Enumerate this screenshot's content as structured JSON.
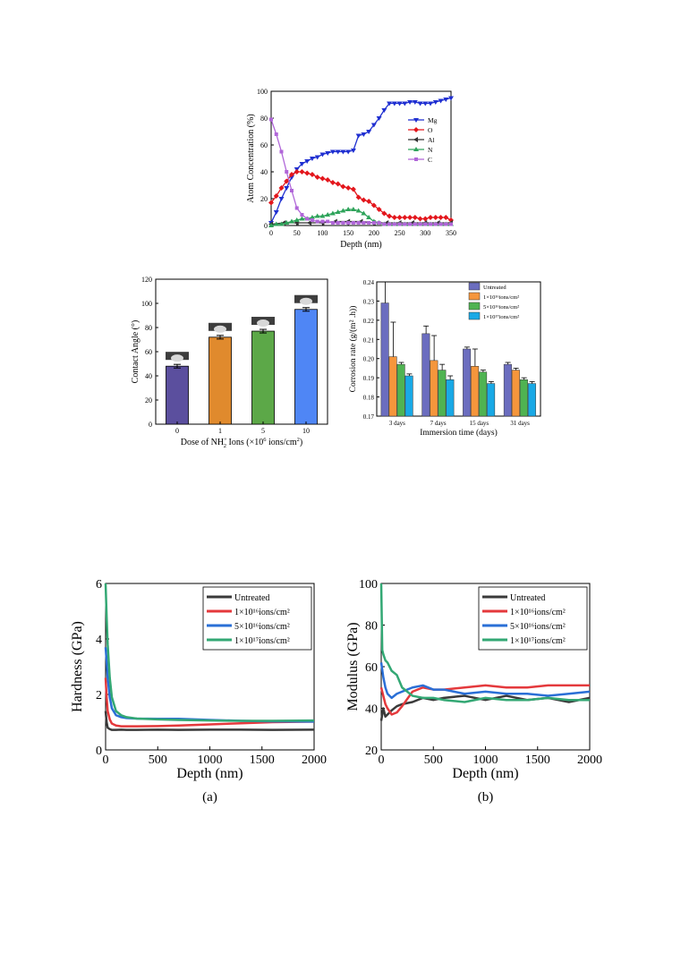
{
  "charts": {
    "atom": {
      "type": "line",
      "xlabel": "Depth (nm)",
      "ylabel": "Atom Concentration (%)",
      "xlim": [
        0,
        350
      ],
      "ylim": [
        0,
        100
      ],
      "xticks": [
        0,
        50,
        100,
        150,
        200,
        250,
        300,
        350
      ],
      "yticks": [
        0,
        20,
        40,
        60,
        80,
        100
      ],
      "legend_position": "right",
      "series": [
        {
          "name": "Mg",
          "color": "#1f2fd1",
          "marker": "tri-down",
          "x": [
            0,
            10,
            20,
            30,
            40,
            50,
            60,
            70,
            80,
            90,
            100,
            110,
            120,
            130,
            140,
            150,
            160,
            170,
            180,
            190,
            200,
            210,
            220,
            230,
            240,
            250,
            260,
            270,
            280,
            290,
            300,
            310,
            320,
            330,
            340,
            350
          ],
          "y": [
            2,
            10,
            20,
            28,
            36,
            42,
            46,
            48,
            50,
            51,
            53,
            54,
            55,
            55,
            55,
            55,
            56,
            67,
            68,
            70,
            75,
            80,
            86,
            91,
            91,
            91,
            91,
            92,
            92,
            91,
            91,
            91,
            92,
            93,
            94,
            95
          ]
        },
        {
          "name": "O",
          "color": "#e3161c",
          "marker": "diamond",
          "x": [
            0,
            10,
            20,
            30,
            40,
            50,
            60,
            70,
            80,
            90,
            100,
            110,
            120,
            130,
            140,
            150,
            160,
            170,
            180,
            190,
            200,
            210,
            220,
            230,
            240,
            250,
            260,
            270,
            280,
            290,
            300,
            310,
            320,
            330,
            340,
            350
          ],
          "y": [
            17,
            22,
            28,
            33,
            38,
            40,
            40,
            39,
            38,
            36,
            35,
            34,
            32,
            31,
            29,
            28,
            27,
            21,
            19,
            18,
            15,
            12,
            9,
            7,
            6,
            6,
            6,
            6,
            6,
            5,
            5,
            6,
            6,
            6,
            6,
            4
          ]
        },
        {
          "name": "Al",
          "color": "#333333",
          "marker": "tri-left",
          "x": [
            0,
            25,
            50,
            75,
            100,
            125,
            150,
            175,
            200,
            225,
            250,
            275,
            300,
            325,
            350
          ],
          "y": [
            1,
            2,
            2,
            2,
            2,
            3,
            3,
            3,
            2,
            2,
            2,
            2,
            2,
            2,
            2
          ]
        },
        {
          "name": "N",
          "color": "#2ea35a",
          "marker": "tri-up",
          "x": [
            0,
            10,
            20,
            30,
            40,
            50,
            60,
            70,
            80,
            90,
            100,
            110,
            120,
            130,
            140,
            150,
            160,
            170,
            180,
            190,
            200,
            210,
            220,
            230,
            240,
            250,
            260,
            270,
            280,
            290,
            300,
            310,
            320,
            330,
            340,
            350
          ],
          "y": [
            0,
            1,
            1,
            2,
            3,
            4,
            5,
            5,
            6,
            7,
            7,
            8,
            9,
            10,
            11,
            12,
            12,
            11,
            9,
            6,
            3,
            2,
            1,
            1,
            1,
            1,
            1,
            1,
            1,
            1,
            1,
            1,
            1,
            1,
            1,
            1
          ]
        },
        {
          "name": "C",
          "color": "#b066d8",
          "marker": "square",
          "x": [
            0,
            10,
            20,
            30,
            40,
            50,
            60,
            70,
            80,
            90,
            100,
            110,
            120,
            130,
            140,
            150,
            160,
            170,
            180,
            190,
            200,
            210,
            220,
            230,
            240,
            250,
            260,
            270,
            280,
            290,
            300,
            310,
            320,
            330,
            340,
            350
          ],
          "y": [
            79,
            68,
            55,
            40,
            26,
            13,
            8,
            5,
            4,
            3,
            3,
            3,
            2,
            2,
            2,
            2,
            2,
            2,
            2,
            2,
            2,
            2,
            1,
            1,
            1,
            1,
            1,
            1,
            1,
            1,
            1,
            1,
            1,
            1,
            1,
            1
          ]
        }
      ]
    },
    "contact": {
      "type": "bar",
      "xlabel": "Dose of NH2+ Ions (×10⁶ ions/cm²)",
      "xlabel_parts": [
        "Dose of NH",
        "+",
        "2",
        " Ions (×10",
        "6",
        " ions/cm",
        "2",
        ")"
      ],
      "ylabel": "Contact Angle (°)",
      "ylim": [
        0,
        120
      ],
      "yticks": [
        0,
        20,
        40,
        60,
        80,
        100,
        120
      ],
      "categories": [
        "0",
        "1",
        "5",
        "10"
      ],
      "values": [
        48,
        72,
        77,
        95
      ],
      "errors": [
        1.5,
        1.5,
        1.5,
        1.5
      ],
      "colors": [
        "#5b4f9e",
        "#e08a2d",
        "#5ca848",
        "#4f86f5"
      ]
    },
    "corrosion": {
      "type": "bar",
      "xlabel": "Immersion time (days)",
      "ylabel": "Corrosion rate (g/(m² .h))",
      "ylim": [
        0.17,
        0.24
      ],
      "yticks": [
        "0.17",
        "0.18",
        "0.19",
        "0.20",
        "0.21",
        "0.22",
        "0.23",
        "0.24"
      ],
      "categories": [
        "3 days",
        "7 days",
        "15 days",
        "31 days"
      ],
      "legend_position": "top-right",
      "series": [
        {
          "name": "Untreated",
          "color": "#6b6dbf",
          "values": [
            0.229,
            0.213,
            0.205,
            0.197
          ],
          "errors": [
            0.011,
            0.004,
            0.001,
            0.001
          ]
        },
        {
          "name": "1×10¹⁶ions/cm²",
          "color": "#f5963c",
          "values": [
            0.201,
            0.199,
            0.196,
            0.194
          ],
          "errors": [
            0.018,
            0.013,
            0.009,
            0.001
          ]
        },
        {
          "name": "5×10¹⁶ions/cm²",
          "color": "#4fb352",
          "values": [
            0.197,
            0.194,
            0.193,
            0.189
          ],
          "errors": [
            0.001,
            0.003,
            0.001,
            0.001
          ]
        },
        {
          "name": "1×10¹⁷ions/cm²",
          "color": "#19a9e6",
          "values": [
            0.191,
            0.189,
            0.187,
            0.187
          ],
          "errors": [
            0.001,
            0.002,
            0.001,
            0.001
          ]
        }
      ]
    },
    "hardness": {
      "type": "line",
      "xlabel": "Depth (nm)",
      "ylabel": "Hardness (GPa)",
      "caption": "(a)",
      "xlim": [
        0,
        2000
      ],
      "ylim": [
        0,
        6
      ],
      "xticks": [
        0,
        500,
        1000,
        1500,
        2000
      ],
      "yticks": [
        0,
        2,
        4,
        6
      ],
      "legend_position": "top-right",
      "series": [
        {
          "name": "Untreated",
          "color": "#3a3a3a",
          "x": [
            0,
            10,
            20,
            40,
            60,
            100,
            150,
            200,
            300,
            500,
            700,
            1000,
            1300,
            1600,
            2000
          ],
          "y": [
            1.4,
            1.0,
            0.8,
            0.75,
            0.72,
            0.72,
            0.73,
            0.72,
            0.72,
            0.73,
            0.72,
            0.73,
            0.73,
            0.72,
            0.73
          ]
        },
        {
          "name": "1×10¹⁶ions/cm²",
          "color": "#e4393c",
          "x": [
            0,
            10,
            20,
            40,
            60,
            100,
            150,
            200,
            300,
            500,
            700,
            1000,
            1300,
            1600,
            2000
          ],
          "y": [
            2.6,
            1.9,
            1.4,
            1.1,
            0.95,
            0.88,
            0.85,
            0.85,
            0.85,
            0.86,
            0.88,
            0.92,
            0.96,
            1.0,
            1.02
          ]
        },
        {
          "name": "5×10¹⁶ions/cm²",
          "color": "#2a6fd6",
          "x": [
            0,
            10,
            20,
            40,
            60,
            100,
            150,
            200,
            300,
            500,
            700,
            1000,
            1300,
            1600,
            2000
          ],
          "y": [
            3.7,
            3.2,
            2.6,
            1.9,
            1.5,
            1.25,
            1.18,
            1.15,
            1.13,
            1.12,
            1.12,
            1.08,
            1.05,
            1.03,
            1.02
          ]
        },
        {
          "name": "1×10¹⁷ions/cm²",
          "color": "#33a874",
          "x": [
            0,
            10,
            20,
            40,
            60,
            100,
            150,
            200,
            300,
            500,
            700,
            1000,
            1300,
            1600,
            2000
          ],
          "y": [
            6.0,
            4.8,
            3.8,
            2.6,
            1.9,
            1.4,
            1.25,
            1.18,
            1.13,
            1.1,
            1.08,
            1.06,
            1.05,
            1.05,
            1.06
          ]
        }
      ]
    },
    "modulus": {
      "type": "line",
      "xlabel": "Depth (nm)",
      "ylabel": "Modulus (GPa)",
      "caption": "(b)",
      "xlim": [
        0,
        2000
      ],
      "ylim": [
        20,
        100
      ],
      "xticks": [
        0,
        500,
        1000,
        1500,
        2000
      ],
      "yticks": [
        20,
        40,
        60,
        80,
        100
      ],
      "legend_position": "top-right",
      "series": [
        {
          "name": "Untreated",
          "color": "#3a3a3a",
          "x": [
            0,
            20,
            40,
            60,
            100,
            150,
            200,
            300,
            400,
            500,
            600,
            800,
            1000,
            1200,
            1400,
            1600,
            1800,
            2000
          ],
          "y": [
            34,
            40,
            36,
            37,
            39,
            41,
            42,
            43,
            45,
            44,
            45,
            46,
            44,
            46,
            44,
            45,
            43,
            45
          ]
        },
        {
          "name": "1×10¹⁶ions/cm²",
          "color": "#e4393c",
          "x": [
            0,
            20,
            40,
            60,
            100,
            150,
            200,
            300,
            400,
            500,
            600,
            800,
            1000,
            1200,
            1400,
            1600,
            1800,
            2000
          ],
          "y": [
            50,
            46,
            42,
            40,
            37,
            38,
            41,
            48,
            50,
            49,
            49,
            50,
            51,
            50,
            50,
            51,
            51,
            51
          ]
        },
        {
          "name": "5×10¹⁶ions/cm²",
          "color": "#2a6fd6",
          "x": [
            0,
            20,
            40,
            60,
            100,
            150,
            200,
            300,
            400,
            500,
            600,
            800,
            1000,
            1200,
            1400,
            1600,
            1800,
            2000
          ],
          "y": [
            62,
            55,
            50,
            47,
            45,
            47,
            48,
            50,
            51,
            49,
            49,
            47,
            48,
            47,
            47,
            46,
            47,
            48
          ]
        },
        {
          "name": "1×10¹⁷ions/cm²",
          "color": "#33a874",
          "x": [
            0,
            10,
            20,
            40,
            60,
            100,
            150,
            200,
            300,
            400,
            500,
            600,
            800,
            1000,
            1200,
            1400,
            1600,
            1800,
            2000
          ],
          "y": [
            100,
            68,
            66,
            63,
            62,
            58,
            56,
            50,
            46,
            45,
            45,
            44,
            43,
            45,
            44,
            44,
            45,
            44,
            44
          ]
        }
      ]
    }
  }
}
